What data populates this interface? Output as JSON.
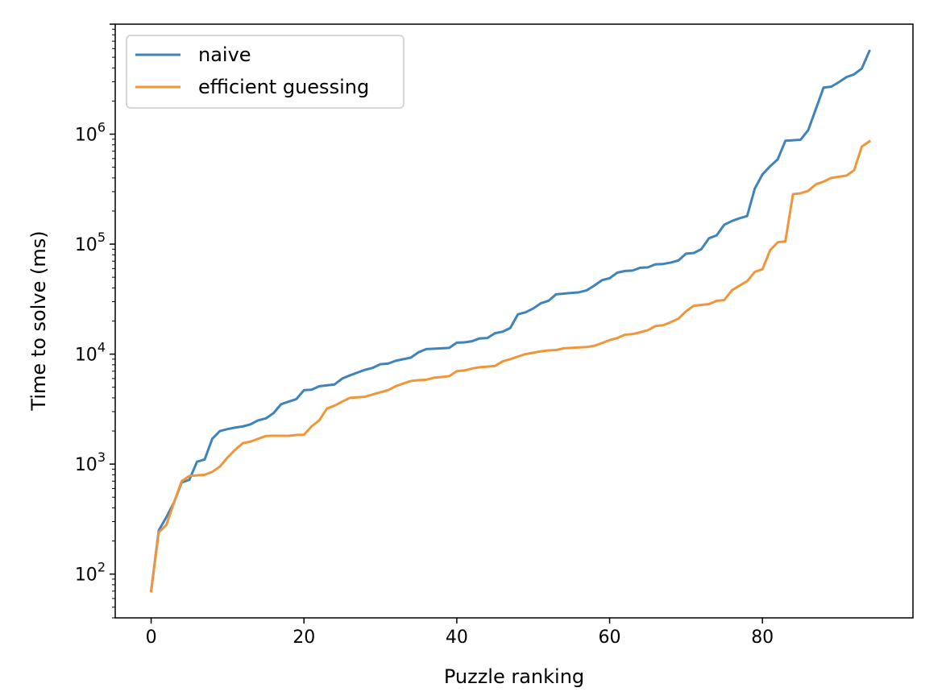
{
  "chart_data": {
    "type": "line",
    "title": "",
    "xlabel": "Puzzle ranking",
    "ylabel": "Time to solve (ms)",
    "xlim": [
      -4.7,
      99.7
    ],
    "ylim": [
      40,
      10000000
    ],
    "yscale": "log",
    "grid": false,
    "legend_position": "top-left",
    "xticks": [
      0,
      20,
      40,
      60,
      80
    ],
    "yticks": [
      {
        "value": 100,
        "base": "10",
        "exp": "2"
      },
      {
        "value": 1000,
        "base": "10",
        "exp": "3"
      },
      {
        "value": 10000,
        "base": "10",
        "exp": "4"
      },
      {
        "value": 100000,
        "base": "10",
        "exp": "5"
      },
      {
        "value": 1000000,
        "base": "10",
        "exp": "6"
      }
    ],
    "series": [
      {
        "name": "naive",
        "color": "#3f83bb",
        "values": [
          70,
          250,
          330,
          450,
          680,
          720,
          1050,
          1100,
          1700,
          2000,
          2080,
          2150,
          2200,
          2300,
          2500,
          2600,
          2900,
          3500,
          3700,
          3900,
          4700,
          4750,
          5100,
          5200,
          5300,
          6000,
          6400,
          6800,
          7200,
          7500,
          8100,
          8200,
          8700,
          9000,
          9300,
          10400,
          11100,
          11200,
          11300,
          11400,
          12700,
          12800,
          13100,
          13900,
          14000,
          15500,
          16000,
          17300,
          23000,
          24000,
          26000,
          29000,
          30500,
          35000,
          35500,
          36000,
          36500,
          38000,
          42000,
          47000,
          49000,
          55000,
          57000,
          57500,
          61000,
          61500,
          65500,
          66000,
          68000,
          71000,
          82000,
          83000,
          90000,
          113000,
          120000,
          150000,
          162000,
          172000,
          180000,
          320000,
          430000,
          510000,
          590000,
          870000,
          880000,
          890000,
          1090000,
          1700000,
          2650000,
          2700000,
          2970000,
          3300000,
          3500000,
          3950000,
          5700000
        ]
      },
      {
        "name": "efficient guessing",
        "color": "#f0963a",
        "values": [
          70,
          240,
          280,
          450,
          700,
          780,
          790,
          800,
          850,
          950,
          1150,
          1350,
          1550,
          1600,
          1700,
          1800,
          1810,
          1810,
          1810,
          1840,
          1850,
          2200,
          2500,
          3200,
          3400,
          3700,
          4000,
          4050,
          4100,
          4300,
          4500,
          4700,
          5100,
          5400,
          5700,
          5800,
          5850,
          6100,
          6200,
          6300,
          7000,
          7100,
          7400,
          7600,
          7700,
          7800,
          8600,
          9000,
          9500,
          10000,
          10300,
          10600,
          10800,
          10900,
          11300,
          11400,
          11500,
          11600,
          11900,
          12600,
          13400,
          14000,
          15000,
          15200,
          15800,
          16500,
          18000,
          18300,
          19500,
          21000,
          24500,
          27500,
          28000,
          28500,
          30500,
          31000,
          38000,
          42000,
          46000,
          56000,
          59000,
          88000,
          104000,
          106000,
          285000,
          290000,
          305000,
          350000,
          370000,
          400000,
          410000,
          420000,
          470000,
          770000,
          860000
        ]
      }
    ]
  }
}
